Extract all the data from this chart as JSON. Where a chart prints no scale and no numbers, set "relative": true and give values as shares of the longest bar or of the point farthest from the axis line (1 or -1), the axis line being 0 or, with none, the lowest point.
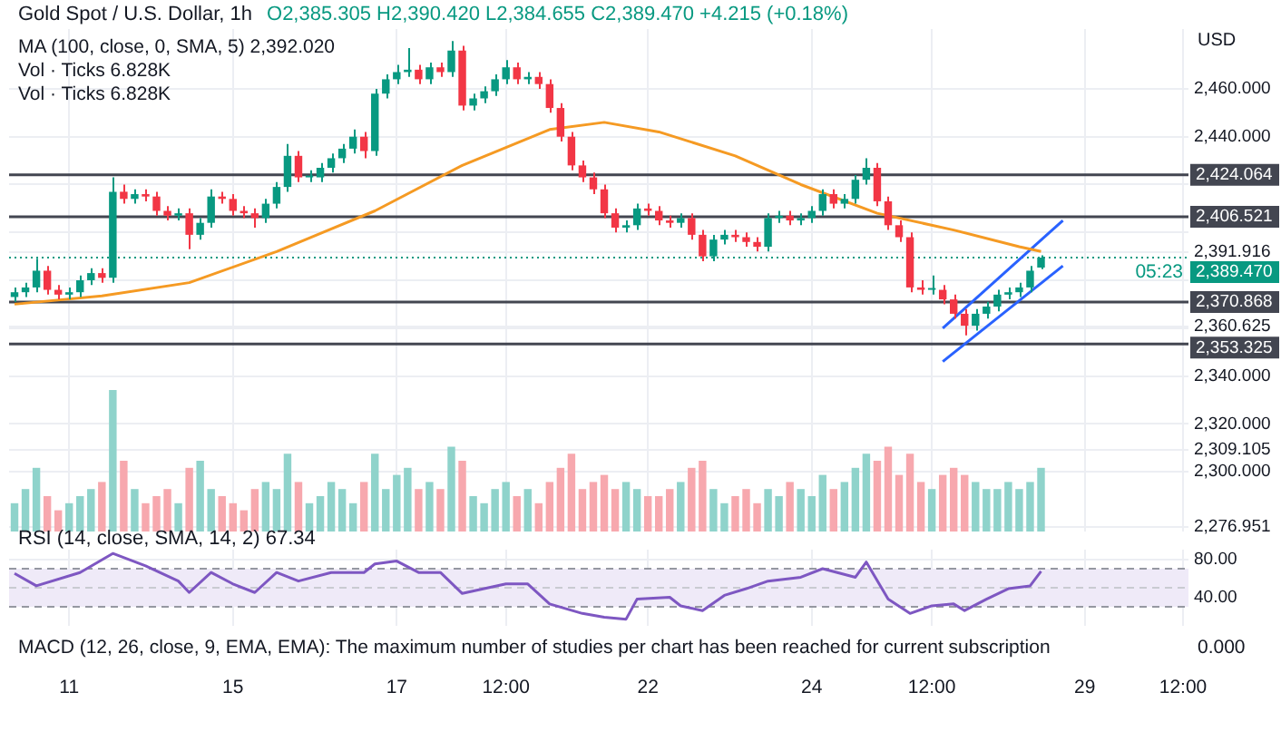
{
  "chart_data": [
    {
      "type": "candlestick",
      "title": "Gold Spot / U.S. Dollar, 1h",
      "subtitle": "O2,385.305 H2,390.420 L2,384.655 C2,389.470 +4.215 (+0.18%)",
      "ylabel": "USD",
      "annotations": [
        "MA (100, close, 0, SMA, 5) 2,392.020",
        "Vol · Ticks 6.828K",
        "Vol · Ticks 6.828K",
        {
          "text": "05:23",
          "y": 2389.47
        }
      ],
      "categories": [
        null,
        null,
        null,
        null,
        null,
        null,
        null,
        null,
        null,
        null,
        null,
        null,
        null,
        null,
        null,
        null,
        null,
        null,
        null,
        null,
        null,
        null,
        null,
        null,
        null,
        null,
        null,
        null,
        null,
        null,
        null,
        null,
        null,
        null,
        null,
        null,
        null,
        null,
        null,
        null,
        null,
        null,
        null,
        null,
        null,
        null,
        null,
        null,
        null,
        null,
        null,
        null,
        null,
        null,
        null,
        null,
        null,
        null,
        null,
        null,
        null,
        null,
        null,
        null,
        null,
        null,
        null,
        null,
        null,
        null,
        null,
        null,
        null,
        null,
        null,
        null,
        null,
        null,
        null,
        null,
        null,
        null,
        null,
        null,
        null,
        null,
        null,
        null,
        null,
        null,
        null,
        null,
        null,
        null,
        null,
        null,
        null,
        null,
        null,
        null,
        null,
        null,
        null,
        null,
        null,
        null,
        null,
        null
      ],
      "ohlc": [
        [
          2373,
          2377,
          2371,
          2375
        ],
        [
          2375,
          2379,
          2373,
          2377
        ],
        [
          2377,
          2389,
          2375,
          2384
        ],
        [
          2384,
          2386,
          2374,
          2376
        ],
        [
          2376,
          2378,
          2372,
          2374
        ],
        [
          2374,
          2377,
          2372,
          2375
        ],
        [
          2375,
          2382,
          2373,
          2380
        ],
        [
          2380,
          2385,
          2378,
          2383
        ],
        [
          2383,
          2385,
          2379,
          2381
        ],
        [
          2381,
          2423,
          2379,
          2417
        ],
        [
          2417,
          2420,
          2412,
          2414
        ],
        [
          2414,
          2418,
          2412,
          2416
        ],
        [
          2416,
          2418,
          2413,
          2415
        ],
        [
          2415,
          2417,
          2407,
          2409
        ],
        [
          2409,
          2411,
          2405,
          2407
        ],
        [
          2407,
          2410,
          2405,
          2408
        ],
        [
          2408,
          2410,
          2393,
          2399
        ],
        [
          2399,
          2406,
          2397,
          2404
        ],
        [
          2404,
          2418,
          2402,
          2415
        ],
        [
          2415,
          2417,
          2412,
          2414
        ],
        [
          2414,
          2416,
          2407,
          2409
        ],
        [
          2409,
          2411,
          2406,
          2408
        ],
        [
          2408,
          2410,
          2402,
          2406
        ],
        [
          2406,
          2414,
          2404,
          2412
        ],
        [
          2412,
          2421,
          2410,
          2419
        ],
        [
          2419,
          2437,
          2417,
          2432
        ],
        [
          2432,
          2434,
          2421,
          2423
        ],
        [
          2423,
          2426,
          2421,
          2423
        ],
        [
          2423,
          2429,
          2421,
          2427
        ],
        [
          2427,
          2433,
          2425,
          2431
        ],
        [
          2431,
          2437,
          2429,
          2435
        ],
        [
          2435,
          2443,
          2433,
          2440
        ],
        [
          2440,
          2442,
          2431,
          2434
        ],
        [
          2434,
          2460,
          2432,
          2458
        ],
        [
          2458,
          2466,
          2456,
          2464
        ],
        [
          2464,
          2470,
          2462,
          2467
        ],
        [
          2467,
          2477,
          2465,
          2468
        ],
        [
          2468,
          2470,
          2462,
          2464
        ],
        [
          2464,
          2471,
          2462,
          2469
        ],
        [
          2469,
          2471,
          2465,
          2467
        ],
        [
          2467,
          2480,
          2465,
          2476
        ],
        [
          2476,
          2478,
          2451,
          2453
        ],
        [
          2453,
          2458,
          2451,
          2456
        ],
        [
          2456,
          2461,
          2454,
          2459
        ],
        [
          2459,
          2466,
          2457,
          2464
        ],
        [
          2464,
          2472,
          2462,
          2469
        ],
        [
          2469,
          2471,
          2462,
          2464
        ],
        [
          2464,
          2467,
          2462,
          2465
        ],
        [
          2465,
          2467,
          2460,
          2462
        ],
        [
          2462,
          2464,
          2450,
          2452
        ],
        [
          2452,
          2454,
          2438,
          2440
        ],
        [
          2440,
          2442,
          2426,
          2428
        ],
        [
          2428,
          2430,
          2421,
          2423
        ],
        [
          2423,
          2425,
          2416,
          2418
        ],
        [
          2418,
          2420,
          2406,
          2408
        ],
        [
          2408,
          2410,
          2400,
          2402
        ],
        [
          2402,
          2405,
          2400,
          2403
        ],
        [
          2403,
          2412,
          2401,
          2410
        ],
        [
          2410,
          2412,
          2407,
          2409
        ],
        [
          2409,
          2411,
          2403,
          2405
        ],
        [
          2405,
          2407,
          2402,
          2404
        ],
        [
          2404,
          2408,
          2402,
          2406
        ],
        [
          2406,
          2408,
          2397,
          2399
        ],
        [
          2399,
          2401,
          2388,
          2390
        ],
        [
          2390,
          2399,
          2388,
          2397
        ],
        [
          2397,
          2401,
          2395,
          2399
        ],
        [
          2399,
          2401,
          2396,
          2398
        ],
        [
          2398,
          2400,
          2394,
          2396
        ],
        [
          2396,
          2398,
          2392,
          2394
        ],
        [
          2394,
          2408,
          2392,
          2406
        ],
        [
          2406,
          2409,
          2404,
          2407
        ],
        [
          2407,
          2409,
          2403,
          2405
        ],
        [
          2405,
          2408,
          2403,
          2406
        ],
        [
          2406,
          2411,
          2404,
          2409
        ],
        [
          2409,
          2418,
          2407,
          2416
        ],
        [
          2416,
          2418,
          2410,
          2412
        ],
        [
          2412,
          2416,
          2410,
          2414
        ],
        [
          2414,
          2424,
          2412,
          2422
        ],
        [
          2422,
          2431,
          2420,
          2427
        ],
        [
          2427,
          2429,
          2411,
          2413
        ],
        [
          2413,
          2415,
          2401,
          2403
        ],
        [
          2403,
          2405,
          2396,
          2398
        ],
        [
          2398,
          2400,
          2375,
          2377
        ],
        [
          2377,
          2380,
          2374,
          2376
        ],
        [
          2376,
          2382,
          2374,
          2376
        ],
        [
          2376,
          2378,
          2370,
          2372
        ],
        [
          2372,
          2374,
          2364,
          2366
        ],
        [
          2366,
          2368,
          2357,
          2361
        ],
        [
          2361,
          2368,
          2359,
          2366
        ],
        [
          2366,
          2371,
          2364,
          2369
        ],
        [
          2369,
          2376,
          2367,
          2374
        ],
        [
          2374,
          2377,
          2372,
          2375
        ],
        [
          2375,
          2379,
          2373,
          2377
        ],
        [
          2377,
          2386,
          2375,
          2384
        ],
        [
          2385.305,
          2390.42,
          2384.655,
          2389.47
        ],
        null,
        null,
        null,
        null,
        null,
        null,
        null,
        null,
        null,
        null,
        null,
        null,
        null
      ],
      "colors": [
        "#089981",
        "#089981",
        "#089981",
        "#f23645",
        "#f23645",
        "#089981",
        "#089981",
        "#089981",
        "#f23645",
        "#089981",
        "#f23645",
        "#089981",
        "#f23645",
        "#f23645",
        "#f23645",
        "#089981",
        "#f23645",
        "#089981",
        "#089981",
        "#f23645",
        "#f23645",
        "#f23645",
        "#f23645",
        "#089981",
        "#089981",
        "#089981",
        "#f23645",
        "#089981",
        "#089981",
        "#089981",
        "#089981",
        "#089981",
        "#f23645",
        "#089981",
        "#089981",
        "#089981",
        "#089981",
        "#f23645",
        "#089981",
        "#f23645",
        "#089981",
        "#f23645",
        "#089981",
        "#089981",
        "#089981",
        "#089981",
        "#f23645",
        "#089981",
        "#f23645",
        "#f23645",
        "#f23645",
        "#f23645",
        "#f23645",
        "#f23645",
        "#f23645",
        "#f23645",
        "#089981",
        "#089981",
        "#f23645",
        "#f23645",
        "#f23645",
        "#089981",
        "#f23645",
        "#f23645",
        "#089981",
        "#089981",
        "#f23645",
        "#f23645",
        "#f23645",
        "#089981",
        "#089981",
        "#f23645",
        "#089981",
        "#089981",
        "#089981",
        "#f23645",
        "#089981",
        "#089981",
        "#089981",
        "#f23645",
        "#f23645",
        "#f23645",
        "#f23645",
        "#f23645",
        "#089981",
        "#f23645",
        "#f23645",
        "#f23645",
        "#089981",
        "#089981",
        "#089981",
        "#089981",
        "#089981",
        "#089981",
        "#089981",
        null,
        null,
        null,
        null,
        null,
        null,
        null,
        null,
        null,
        null,
        null,
        null,
        null
      ],
      "series": [
        {
          "type": "line",
          "color": "#f59a23",
          "values": [
            2370,
            null,
            null,
            null,
            null,
            null,
            null,
            null,
            2373.5,
            null,
            null,
            null,
            null,
            null,
            null,
            null,
            2379,
            null,
            null,
            null,
            null,
            null,
            null,
            null,
            2392,
            null,
            null,
            null,
            null,
            null,
            null,
            null,
            null,
            2409,
            null,
            null,
            null,
            null,
            null,
            null,
            null,
            2428,
            null,
            null,
            null,
            null,
            null,
            null,
            null,
            2443,
            null,
            null,
            null,
            null,
            2446,
            null,
            null,
            null,
            null,
            2442,
            null,
            null,
            null,
            null,
            null,
            null,
            2432,
            null,
            null,
            null,
            null,
            null,
            2420,
            null,
            null,
            null,
            null,
            null,
            null,
            2408,
            null,
            null,
            null,
            null,
            null,
            null,
            2401,
            null,
            null,
            null,
            null,
            null,
            2394,
            null,
            2392.02,
            null,
            null,
            null,
            null,
            null,
            null,
            null,
            null,
            null,
            null,
            null,
            null,
            null
          ]
        },
        {
          "type": "line",
          "color": "#2962ff",
          "values": [
            null,
            null,
            null,
            null,
            null,
            null,
            null,
            null,
            null,
            null,
            null,
            null,
            null,
            null,
            null,
            null,
            null,
            null,
            null,
            null,
            null,
            null,
            null,
            null,
            null,
            null,
            null,
            null,
            null,
            null,
            null,
            null,
            null,
            null,
            null,
            null,
            null,
            null,
            null,
            null,
            null,
            null,
            null,
            null,
            null,
            null,
            null,
            null,
            null,
            null,
            null,
            null,
            null,
            null,
            null,
            null,
            null,
            null,
            null,
            null,
            null,
            null,
            null,
            null,
            null,
            null,
            null,
            null,
            null,
            null,
            null,
            null,
            null,
            null,
            null,
            null,
            null,
            null,
            null,
            null,
            null,
            null,
            null,
            null,
            null,
            2360,
            null,
            null,
            null,
            null,
            null,
            null,
            null,
            null,
            null,
            null,
            2405,
            null,
            null,
            null,
            null,
            null,
            null,
            null,
            null,
            null,
            null,
            null
          ]
        },
        {
          "type": "line",
          "color": "#2962ff",
          "values": [
            null,
            null,
            null,
            null,
            null,
            null,
            null,
            null,
            null,
            null,
            null,
            null,
            null,
            null,
            null,
            null,
            null,
            null,
            null,
            null,
            null,
            null,
            null,
            null,
            null,
            null,
            null,
            null,
            null,
            null,
            null,
            null,
            null,
            null,
            null,
            null,
            null,
            null,
            null,
            null,
            null,
            null,
            null,
            null,
            null,
            null,
            null,
            null,
            null,
            null,
            null,
            null,
            null,
            null,
            null,
            null,
            null,
            null,
            null,
            null,
            null,
            null,
            null,
            null,
            null,
            null,
            null,
            null,
            null,
            null,
            null,
            null,
            null,
            null,
            null,
            null,
            null,
            null,
            null,
            null,
            null,
            null,
            null,
            null,
            null,
            2346,
            null,
            null,
            null,
            null,
            null,
            null,
            null,
            null,
            null,
            null,
            2386,
            null,
            null,
            null,
            null,
            null,
            null,
            null,
            null,
            null,
            null,
            null
          ]
        }
      ],
      "ylim": [
        2275,
        2485
      ],
      "yticks": [
        {
          "value": 2460,
          "label": "2,460.000"
        },
        {
          "value": 2440,
          "label": "2,440.000"
        },
        {
          "value": 2420,
          "label": null
        },
        {
          "value": 2400,
          "label": null
        },
        {
          "value": 2380,
          "label": null
        },
        {
          "value": 2360,
          "label": null
        },
        {
          "value": 2340,
          "label": "2,340.000"
        },
        {
          "value": 2320,
          "label": "2,320.000"
        },
        {
          "value": 2300,
          "label": "2,300.000"
        },
        {
          "value": 2391.916,
          "label": "2,391.916"
        },
        {
          "value": 2360.625,
          "label": "2,360.625"
        },
        {
          "value": 2309.105,
          "label": "2,309.105"
        },
        {
          "value": 2276.951,
          "label": "2,276.951"
        }
      ],
      "ref_lines": [
        {
          "axis": "y",
          "value": 2424.064,
          "label": "2,424.064",
          "color": "#434651"
        },
        {
          "axis": "y",
          "value": 2406.521,
          "label": "2,406.521",
          "color": "#434651"
        },
        {
          "axis": "y",
          "value": 2370.868,
          "label": "2,370.868",
          "color": "#434651"
        },
        {
          "axis": "y",
          "value": 2353.325,
          "label": "2,353.325",
          "color": "#434651"
        },
        {
          "axis": "y",
          "value": 2389.47,
          "label": "2,389.470",
          "color": "#089981",
          "line_style": "dotted"
        }
      ],
      "grid": true,
      "legend": false,
      "tick_labels": "y",
      "marker": "none"
    },
    {
      "type": "bar",
      "relative": true,
      "categories": [
        null,
        null,
        null,
        null,
        null,
        null,
        null,
        null,
        null,
        null,
        null,
        null,
        null,
        null,
        null,
        null,
        null,
        null,
        null,
        null,
        null,
        null,
        null,
        null,
        null,
        null,
        null,
        null,
        null,
        null,
        null,
        null,
        null,
        null,
        null,
        null,
        null,
        null,
        null,
        null,
        null,
        null,
        null,
        null,
        null,
        null,
        null,
        null,
        null,
        null,
        null,
        null,
        null,
        null,
        null,
        null,
        null,
        null,
        null,
        null,
        null,
        null,
        null,
        null,
        null,
        null,
        null,
        null,
        null,
        null,
        null,
        null,
        null,
        null,
        null,
        null,
        null,
        null,
        null,
        null,
        null,
        null,
        null,
        null,
        null,
        null,
        null,
        null,
        null,
        null,
        null,
        null,
        null,
        null,
        null,
        null,
        null,
        null,
        null,
        null,
        null,
        null,
        null,
        null,
        null,
        null,
        null,
        null
      ],
      "values": [
        0.2,
        0.3,
        0.45,
        0.25,
        0.15,
        0.2,
        0.25,
        0.3,
        0.35,
        1,
        0.5,
        0.3,
        0.2,
        0.25,
        0.3,
        0.2,
        0.45,
        0.5,
        0.3,
        0.25,
        0.2,
        0.15,
        0.3,
        0.35,
        0.3,
        0.55,
        0.35,
        0.2,
        0.25,
        0.35,
        0.3,
        0.2,
        0.35,
        0.55,
        0.3,
        0.4,
        0.45,
        0.3,
        0.35,
        0.3,
        0.6,
        0.5,
        0.25,
        0.2,
        0.3,
        0.35,
        0.25,
        0.3,
        0.2,
        0.35,
        0.45,
        0.55,
        0.3,
        0.35,
        0.4,
        0.3,
        0.35,
        0.3,
        0.25,
        0.25,
        0.3,
        0.35,
        0.45,
        0.5,
        0.3,
        0.2,
        0.25,
        0.3,
        0.2,
        0.3,
        0.25,
        0.35,
        0.3,
        0.25,
        0.4,
        0.3,
        0.35,
        0.45,
        0.55,
        0.5,
        0.6,
        0.4,
        0.55,
        0.35,
        0.3,
        0.4,
        0.45,
        0.4,
        0.35,
        0.3,
        0.3,
        0.35,
        0.3,
        0.35,
        0.45,
        null,
        null,
        null,
        null,
        null,
        null,
        null,
        null,
        null,
        null,
        null,
        null,
        null
      ],
      "colors": [
        "#8fd3cb",
        "#8fd3cb",
        "#8fd3cb",
        "#f7a8ae",
        "#f7a8ae",
        "#8fd3cb",
        "#8fd3cb",
        "#8fd3cb",
        "#f7a8ae",
        "#8fd3cb",
        "#f7a8ae",
        "#8fd3cb",
        "#f7a8ae",
        "#f7a8ae",
        "#f7a8ae",
        "#8fd3cb",
        "#f7a8ae",
        "#8fd3cb",
        "#8fd3cb",
        "#f7a8ae",
        "#f7a8ae",
        "#f7a8ae",
        "#f7a8ae",
        "#8fd3cb",
        "#8fd3cb",
        "#8fd3cb",
        "#f7a8ae",
        "#8fd3cb",
        "#8fd3cb",
        "#8fd3cb",
        "#8fd3cb",
        "#8fd3cb",
        "#f7a8ae",
        "#8fd3cb",
        "#8fd3cb",
        "#8fd3cb",
        "#8fd3cb",
        "#f7a8ae",
        "#8fd3cb",
        "#f7a8ae",
        "#8fd3cb",
        "#f7a8ae",
        "#8fd3cb",
        "#8fd3cb",
        "#8fd3cb",
        "#8fd3cb",
        "#f7a8ae",
        "#8fd3cb",
        "#f7a8ae",
        "#f7a8ae",
        "#f7a8ae",
        "#f7a8ae",
        "#f7a8ae",
        "#f7a8ae",
        "#f7a8ae",
        "#f7a8ae",
        "#8fd3cb",
        "#8fd3cb",
        "#f7a8ae",
        "#f7a8ae",
        "#f7a8ae",
        "#8fd3cb",
        "#f7a8ae",
        "#f7a8ae",
        "#8fd3cb",
        "#8fd3cb",
        "#f7a8ae",
        "#f7a8ae",
        "#f7a8ae",
        "#8fd3cb",
        "#8fd3cb",
        "#f7a8ae",
        "#8fd3cb",
        "#8fd3cb",
        "#8fd3cb",
        "#f7a8ae",
        "#8fd3cb",
        "#8fd3cb",
        "#8fd3cb",
        "#f7a8ae",
        "#f7a8ae",
        "#f7a8ae",
        "#f7a8ae",
        "#f7a8ae",
        "#8fd3cb",
        "#f7a8ae",
        "#f7a8ae",
        "#f7a8ae",
        "#8fd3cb",
        "#8fd3cb",
        "#8fd3cb",
        "#8fd3cb",
        "#8fd3cb",
        "#8fd3cb",
        "#8fd3cb",
        null,
        null,
        null,
        null,
        null,
        null,
        null,
        null,
        null,
        null,
        null,
        null,
        null
      ],
      "tick_labels": false,
      "legend": false
    },
    {
      "type": "line",
      "title": "RSI (14, close, SMA, 14, 2) 67.34",
      "categories": [
        null,
        null,
        null,
        null,
        null,
        "11",
        null,
        null,
        null,
        null,
        null,
        null,
        null,
        null,
        null,
        null,
        null,
        null,
        null,
        null,
        "15",
        null,
        null,
        null,
        null,
        null,
        null,
        null,
        null,
        null,
        null,
        null,
        null,
        null,
        null,
        "17",
        null,
        null,
        null,
        null,
        null,
        null,
        null,
        null,
        null,
        "12:00",
        null,
        null,
        null,
        null,
        null,
        null,
        null,
        null,
        null,
        null,
        null,
        null,
        "22",
        null,
        null,
        null,
        null,
        null,
        null,
        null,
        null,
        null,
        null,
        null,
        null,
        null,
        null,
        "24",
        null,
        null,
        null,
        null,
        null,
        null,
        null,
        null,
        null,
        null,
        "12:00",
        null,
        null,
        null,
        null,
        null,
        null,
        null,
        null,
        null,
        null,
        null,
        null,
        null,
        "29",
        null,
        null,
        null,
        null,
        null,
        null,
        null,
        null,
        "12:00"
      ],
      "series": [
        {
          "color": "#7e57c2",
          "values": [
            65,
            null,
            52,
            null,
            null,
            null,
            66,
            null,
            null,
            86,
            null,
            null,
            73,
            null,
            null,
            57,
            45,
            null,
            66,
            null,
            54,
            null,
            45,
            null,
            66,
            null,
            57,
            null,
            null,
            66,
            null,
            null,
            66,
            75,
            null,
            78,
            null,
            66,
            null,
            66,
            null,
            44,
            null,
            49,
            null,
            54,
            null,
            54,
            null,
            33,
            null,
            null,
            23,
            null,
            19,
            null,
            17,
            38,
            null,
            null,
            40,
            31,
            null,
            26,
            null,
            42,
            null,
            49,
            null,
            57,
            null,
            null,
            61,
            null,
            70,
            null,
            null,
            61,
            77,
            null,
            38,
            null,
            23,
            null,
            31,
            null,
            33,
            26,
            null,
            38,
            null,
            49,
            null,
            52,
            67.34,
            null,
            null,
            null,
            null,
            null,
            null,
            null,
            null,
            null,
            null,
            null,
            null,
            null
          ]
        }
      ],
      "ylim": [
        10,
        90
      ],
      "yticks": [
        {
          "value": 40,
          "label": "40.00"
        },
        {
          "value": 80,
          "label": "80.00"
        }
      ],
      "ref_lines": [
        {
          "axis": "y",
          "value": 70,
          "color": "#9598a1",
          "line_style": "dashed"
        },
        {
          "axis": "y",
          "value": 50,
          "color": "#c9cbd1",
          "line_style": "dashed"
        },
        {
          "axis": "y",
          "value": 30,
          "color": "#9598a1",
          "line_style": "dashed"
        }
      ],
      "bands": [
        {
          "axis": "y",
          "from": 30,
          "to": 70,
          "color": "#efeaf8"
        }
      ],
      "annotations": [
        "MACD (12, 26, close, 9, EMA, EMA): The maximum number of studies per chart has been reached for current subscription",
        "0.000"
      ],
      "grid": true,
      "legend": false,
      "marker": "none",
      "line_style": "solid"
    }
  ]
}
